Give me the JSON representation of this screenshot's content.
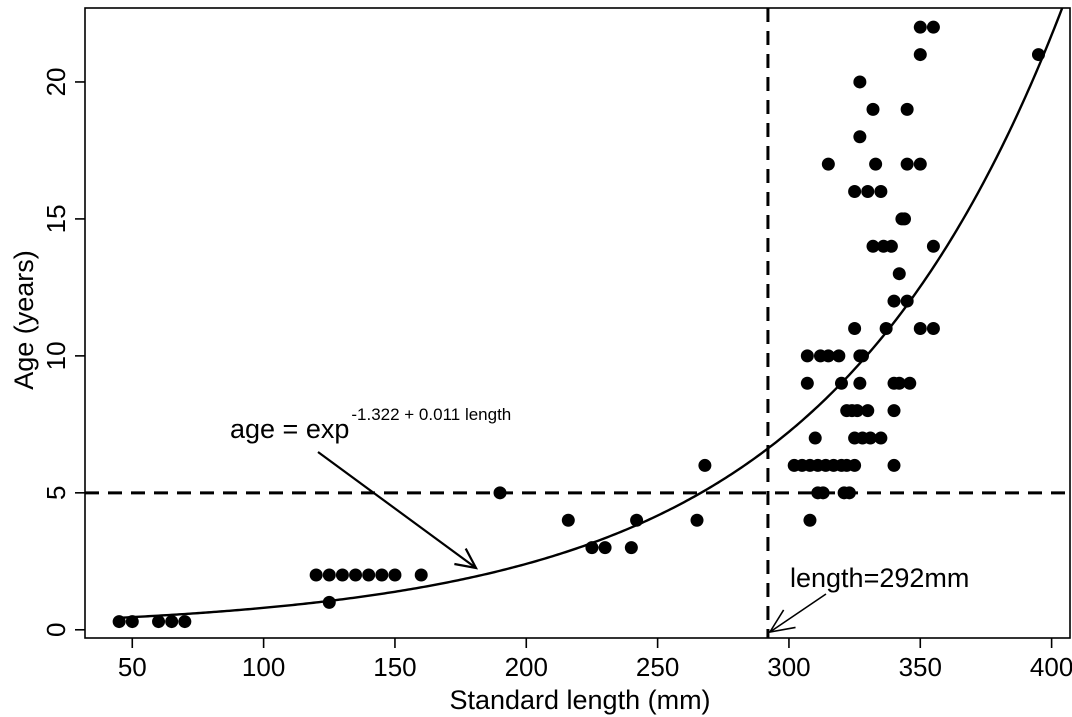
{
  "chart_data": {
    "type": "scatter",
    "xlabel": "Standard length (mm)",
    "ylabel": "Age (years)",
    "xlim": [
      32,
      407
    ],
    "ylim": [
      -0.3,
      22.7
    ],
    "xticks": [
      50,
      100,
      150,
      200,
      250,
      300,
      350,
      400
    ],
    "yticks": [
      0,
      5,
      10,
      15,
      20
    ],
    "grid": false,
    "points": [
      [
        45,
        0.3
      ],
      [
        50,
        0.3
      ],
      [
        60,
        0.3
      ],
      [
        65,
        0.3
      ],
      [
        70,
        0.3
      ],
      [
        120,
        2
      ],
      [
        125,
        2
      ],
      [
        130,
        2
      ],
      [
        135,
        2
      ],
      [
        140,
        2
      ],
      [
        145,
        2
      ],
      [
        150,
        2
      ],
      [
        160,
        2
      ],
      [
        125,
        1
      ],
      [
        190,
        5
      ],
      [
        216,
        4
      ],
      [
        225,
        3
      ],
      [
        230,
        3
      ],
      [
        240,
        3
      ],
      [
        242,
        4
      ],
      [
        265,
        4
      ],
      [
        268,
        6
      ],
      [
        302,
        6
      ],
      [
        305,
        6
      ],
      [
        307,
        9
      ],
      [
        307,
        10
      ],
      [
        308,
        6
      ],
      [
        308,
        4
      ],
      [
        310,
        7
      ],
      [
        311,
        6
      ],
      [
        311,
        5
      ],
      [
        312,
        10
      ],
      [
        313,
        5
      ],
      [
        314,
        6
      ],
      [
        315,
        10
      ],
      [
        315,
        17
      ],
      [
        317,
        6
      ],
      [
        319,
        10
      ],
      [
        320,
        6
      ],
      [
        320,
        9
      ],
      [
        321,
        5
      ],
      [
        322,
        6
      ],
      [
        322,
        8
      ],
      [
        323,
        5
      ],
      [
        324,
        8
      ],
      [
        325,
        16
      ],
      [
        325,
        11
      ],
      [
        325,
        7
      ],
      [
        325,
        6
      ],
      [
        326,
        8
      ],
      [
        327,
        20
      ],
      [
        327,
        10
      ],
      [
        327,
        18
      ],
      [
        327,
        9
      ],
      [
        328,
        7
      ],
      [
        328,
        10
      ],
      [
        330,
        16
      ],
      [
        330,
        8
      ],
      [
        331,
        7
      ],
      [
        332,
        14
      ],
      [
        332,
        19
      ],
      [
        333,
        17
      ],
      [
        335,
        16
      ],
      [
        335,
        7
      ],
      [
        336,
        14
      ],
      [
        337,
        11
      ],
      [
        339,
        14
      ],
      [
        340,
        12
      ],
      [
        340,
        9
      ],
      [
        340,
        8
      ],
      [
        340,
        6
      ],
      [
        342,
        13
      ],
      [
        342,
        9
      ],
      [
        343,
        15
      ],
      [
        344,
        15
      ],
      [
        345,
        19
      ],
      [
        345,
        17
      ],
      [
        345,
        12
      ],
      [
        346,
        9
      ],
      [
        350,
        22
      ],
      [
        350,
        21
      ],
      [
        350,
        17
      ],
      [
        350,
        11
      ],
      [
        355,
        22
      ],
      [
        355,
        14
      ],
      [
        355,
        11
      ],
      [
        395,
        21
      ]
    ],
    "fit_curve": {
      "intercept": -1.322,
      "slope": 0.011
    },
    "reference_lines": {
      "horizontal_age": 5,
      "vertical_length": 292
    },
    "annotations": {
      "equation_prefix": "age = exp",
      "equation_exponent": "-1.322 + 0.011 length",
      "length_label": "length=292mm"
    }
  }
}
